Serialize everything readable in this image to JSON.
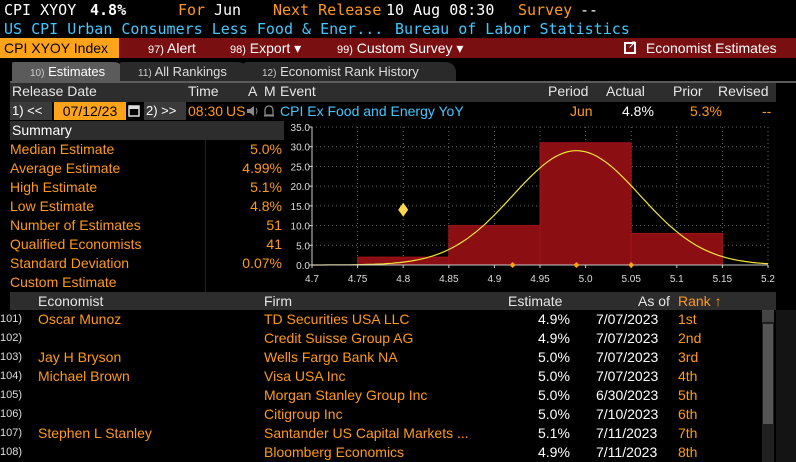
{
  "header": {
    "ticker": "CPI XYOY",
    "value": "4.8%",
    "for_label": "For",
    "for_value": "Jun",
    "next_release_label": "Next Release",
    "next_release_value": "10 Aug 08:30",
    "survey_label": "Survey",
    "survey_value": "--",
    "description": "US CPI Urban Consumers Less Food & Ener...",
    "source": "Bureau of Labor Statistics"
  },
  "toolbar": {
    "index_label": "CPI XYOY Index",
    "alert_num": "97)",
    "alert_label": "Alert",
    "export_num": "98)",
    "export_label": "Export ▾",
    "survey_num": "99)",
    "survey_label": "Custom Survey ▾",
    "economist_label": "Economist Estimates"
  },
  "tabs": [
    {
      "num": "10)",
      "label": "Estimates"
    },
    {
      "num": "11)",
      "label": "All Rankings"
    },
    {
      "num": "12)",
      "label": "Economist Rank History"
    }
  ],
  "release_table": {
    "headers": {
      "release_date": "Release Date",
      "time": "Time",
      "a": "A",
      "m": "M",
      "event": "Event",
      "period": "Period",
      "actual": "Actual",
      "prior": "Prior",
      "revised": "Revised"
    },
    "prev_btn": "1) <<",
    "date": "07/12/23",
    "next_btn": "2) >>",
    "time": "08:30",
    "country": "US",
    "event": "CPI Ex Food and Energy YoY",
    "period": "Jun",
    "actual": "4.8%",
    "prior": "5.3%",
    "revised": "--"
  },
  "summary": {
    "title": "Summary",
    "rows": [
      {
        "label": "Median Estimate",
        "value": "5.0%"
      },
      {
        "label": "Average Estimate",
        "value": "4.99%"
      },
      {
        "label": "High Estimate",
        "value": "5.1%"
      },
      {
        "label": "Low Estimate",
        "value": "4.8%"
      },
      {
        "label": "Number of Estimates",
        "value": "51"
      },
      {
        "label": "Qualified Economists",
        "value": "41"
      },
      {
        "label": "Standard Deviation",
        "value": "0.07%"
      },
      {
        "label": "Custom Estimate",
        "value": ""
      }
    ]
  },
  "chart_data": {
    "type": "bar",
    "ylim": [
      0,
      35
    ],
    "xlim": [
      4.7,
      5.2
    ],
    "y_ticks": [
      "35.0",
      "30.0",
      "25.0",
      "20.0",
      "15.0",
      "10.0",
      "5.0",
      "0.0"
    ],
    "x_ticks": [
      "4.7",
      "4.75",
      "4.8",
      "4.85",
      "4.9",
      "4.95",
      "5.0",
      "5.05",
      "5.1",
      "5.15",
      "5.2"
    ],
    "bins": [
      {
        "from": 4.75,
        "to": 4.85,
        "value": 2
      },
      {
        "from": 4.85,
        "to": 4.95,
        "value": 10
      },
      {
        "from": 4.95,
        "to": 5.05,
        "value": 31
      },
      {
        "from": 5.05,
        "to": 5.15,
        "value": 8
      }
    ],
    "normal_mean": 4.99,
    "normal_peak": 29,
    "normal_sd": 0.07,
    "actual_marker": 4.8,
    "markers_x": [
      4.92,
      4.99,
      5.05
    ],
    "colors": {
      "bar": "#8b0f12",
      "curve": "#f2e23a",
      "marker": "#ffa31a"
    }
  },
  "economists_table": {
    "headers": {
      "economist": "Economist",
      "firm": "Firm",
      "estimate": "Estimate",
      "as_of": "As of",
      "rank": "Rank ↑"
    },
    "rows": [
      {
        "num": "101)",
        "economist": "Oscar Munoz",
        "firm": "TD Securities USA LLC",
        "estimate": "4.9%",
        "as_of": "7/07/2023",
        "rank": "1st"
      },
      {
        "num": "102)",
        "economist": "",
        "firm": "Credit Suisse Group AG",
        "estimate": "4.9%",
        "as_of": "7/07/2023",
        "rank": "2nd"
      },
      {
        "num": "103)",
        "economist": "Jay H Bryson",
        "firm": "Wells Fargo Bank NA",
        "estimate": "5.0%",
        "as_of": "7/07/2023",
        "rank": "3rd"
      },
      {
        "num": "104)",
        "economist": "Michael Brown",
        "firm": "Visa USA Inc",
        "estimate": "5.0%",
        "as_of": "7/07/2023",
        "rank": "4th"
      },
      {
        "num": "105)",
        "economist": "",
        "firm": "Morgan Stanley Group Inc",
        "estimate": "5.0%",
        "as_of": "6/30/2023",
        "rank": "5th"
      },
      {
        "num": "106)",
        "economist": "",
        "firm": "Citigroup Inc",
        "estimate": "5.0%",
        "as_of": "7/10/2023",
        "rank": "6th"
      },
      {
        "num": "107)",
        "economist": "Stephen L Stanley",
        "firm": "Santander US Capital Markets ...",
        "estimate": "5.1%",
        "as_of": "7/11/2023",
        "rank": "7th"
      },
      {
        "num": "108)",
        "economist": "",
        "firm": "Bloomberg Economics",
        "estimate": "4.9%",
        "as_of": "7/11/2023",
        "rank": "8th"
      }
    ]
  }
}
